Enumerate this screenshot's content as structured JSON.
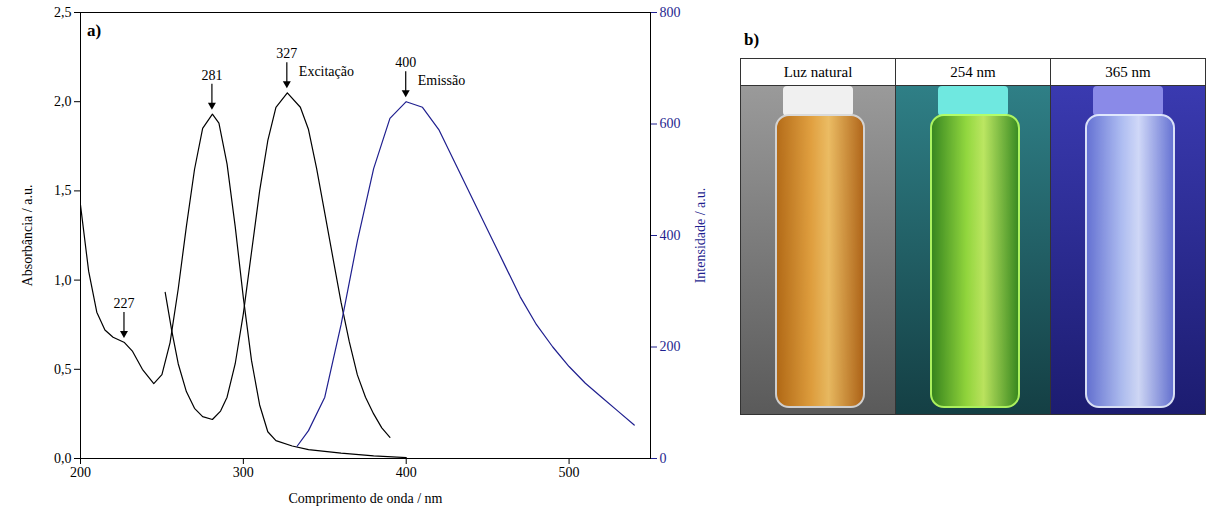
{
  "chart_data": {
    "type": "line",
    "panel": "a)",
    "x_label": "Comprimento de onda / nm",
    "y_label": "Absorbância / a.u.",
    "y2_label": "Intensidade / a.u.",
    "xlim": [
      200,
      550
    ],
    "xticks": [
      200,
      300,
      400,
      500
    ],
    "ylim": [
      0,
      2.5
    ],
    "yticks": [
      {
        "value": 0,
        "label": "0,0"
      },
      {
        "value": 0.5,
        "label": "0,5"
      },
      {
        "value": 1,
        "label": "1,0"
      },
      {
        "value": 1.5,
        "label": "1,5"
      },
      {
        "value": 2,
        "label": "2,0"
      },
      {
        "value": 2.5,
        "label": "2,5"
      }
    ],
    "y2lim": [
      0,
      800
    ],
    "y2ticks": [
      0,
      200,
      400,
      600,
      800
    ],
    "series": [
      {
        "color": "#000000",
        "x": [
          200,
          205,
          210,
          215,
          220,
          227,
          232,
          238,
          245,
          250,
          255,
          260,
          265,
          270,
          275,
          281,
          285,
          290,
          295,
          300,
          305,
          310,
          315,
          320,
          330,
          340,
          360,
          380,
          400
        ],
        "values": [
          1.42,
          1.05,
          0.82,
          0.72,
          0.68,
          0.65,
          0.6,
          0.5,
          0.42,
          0.47,
          0.65,
          0.95,
          1.3,
          1.62,
          1.85,
          1.93,
          1.88,
          1.65,
          1.3,
          0.9,
          0.55,
          0.3,
          0.15,
          0.1,
          0.07,
          0.05,
          0.03,
          0.015,
          0.005
        ]
      },
      {
        "name": "Excitação",
        "axis": "y2",
        "color": "#000000",
        "x": [
          252,
          256,
          260,
          265,
          270,
          275,
          281,
          286,
          290,
          295,
          300,
          305,
          310,
          315,
          320,
          327,
          335,
          340,
          345,
          350,
          355,
          360,
          365,
          370,
          375,
          380,
          385,
          390
        ],
        "values": [
          298,
          230,
          170,
          120,
          90,
          75,
          70,
          85,
          110,
          170,
          260,
          370,
          480,
          570,
          630,
          656,
          630,
          590,
          520,
          440,
          360,
          280,
          210,
          150,
          110,
          80,
          55,
          38
        ]
      },
      {
        "name": "Emissão",
        "axis": "y2",
        "color": "#1f1f8f",
        "x": [
          333,
          340,
          350,
          360,
          370,
          380,
          390,
          400,
          410,
          420,
          430,
          440,
          450,
          460,
          470,
          480,
          490,
          500,
          510,
          520,
          530,
          540
        ],
        "values": [
          22,
          50,
          110,
          240,
          390,
          520,
          610,
          640,
          630,
          590,
          530,
          470,
          410,
          350,
          290,
          240,
          200,
          165,
          135,
          110,
          85,
          60
        ]
      }
    ],
    "annotations": [
      {
        "text": "227",
        "x": 227,
        "y": 0.65
      },
      {
        "text": "281",
        "x": 281,
        "y": 1.93
      },
      {
        "text": "327",
        "x": 327,
        "y": 656,
        "axis": "y2"
      },
      {
        "text": "400",
        "x": 400,
        "y": 640,
        "axis": "y2"
      }
    ]
  },
  "panel_b": {
    "label": "b)",
    "columns": [
      "Luz natural",
      "254 nm",
      "365 nm"
    ]
  }
}
